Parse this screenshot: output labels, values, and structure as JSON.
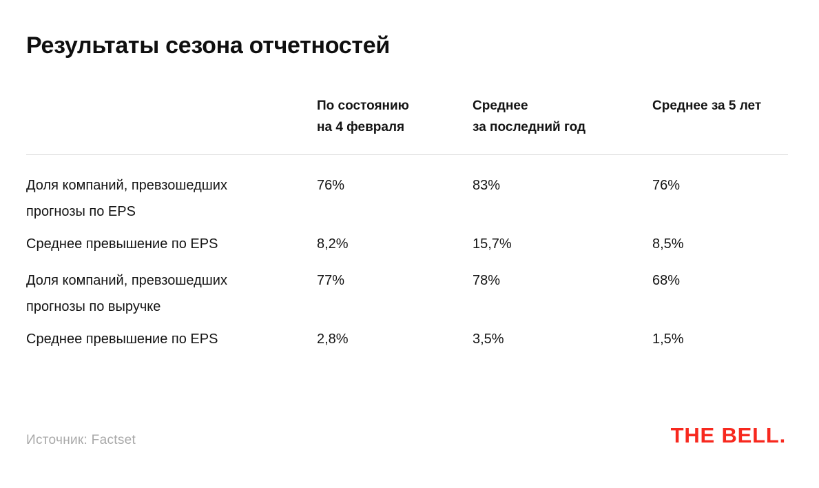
{
  "colors": {
    "background": "#FFFFFF",
    "text": "#141414",
    "muted_gray": "#A8A8A8",
    "divider_gray": "#DCDCDC",
    "brand_red": "#F7281E"
  },
  "header": {
    "title": "Результаты сезона отчетностей"
  },
  "table": {
    "columns": [
      {
        "label": "По состоянию\nна 4 февраля"
      },
      {
        "label": "Среднее\nза последний год"
      },
      {
        "label": "Среднее за 5 лет"
      }
    ],
    "rows": [
      {
        "label": "Доля компаний, превзошедших\nпрогнозы по EPS",
        "values": [
          "76%",
          "83%",
          "76%"
        ]
      },
      {
        "label": "Среднее превышение по EPS",
        "values": [
          "8,2%",
          "15,7%",
          "8,5%"
        ]
      },
      {
        "label": "Доля компаний, превзошедших\nпрогнозы по выручке",
        "values": [
          "77%",
          "78%",
          "68%"
        ]
      },
      {
        "label": "Среднее превышение по EPS",
        "values": [
          "2,8%",
          "3,5%",
          "1,5%"
        ]
      }
    ]
  },
  "footer": {
    "source": "Источник: Factset",
    "logo": "THE BELL."
  },
  "chart_data": {
    "type": "table",
    "title": "Результаты сезона отчетностей",
    "columns": [
      "",
      "По состоянию на 4 февраля",
      "Среднее за последний год",
      "Среднее за 5 лет"
    ],
    "rows": [
      [
        "Доля компаний, превзошедших прогнозы по EPS",
        "76%",
        "83%",
        "76%"
      ],
      [
        "Среднее превышение по EPS",
        "8,2%",
        "15,7%",
        "8,5%"
      ],
      [
        "Доля компаний, превзошедших прогнозы по выручке",
        "77%",
        "78%",
        "68%"
      ],
      [
        "Среднее превышение по EPS",
        "2,8%",
        "3,5%",
        "1,5%"
      ]
    ],
    "source": "Источник: Factset",
    "layout": {
      "grid": "off",
      "header_divider": true,
      "first_column_is_row_labels": true
    }
  }
}
